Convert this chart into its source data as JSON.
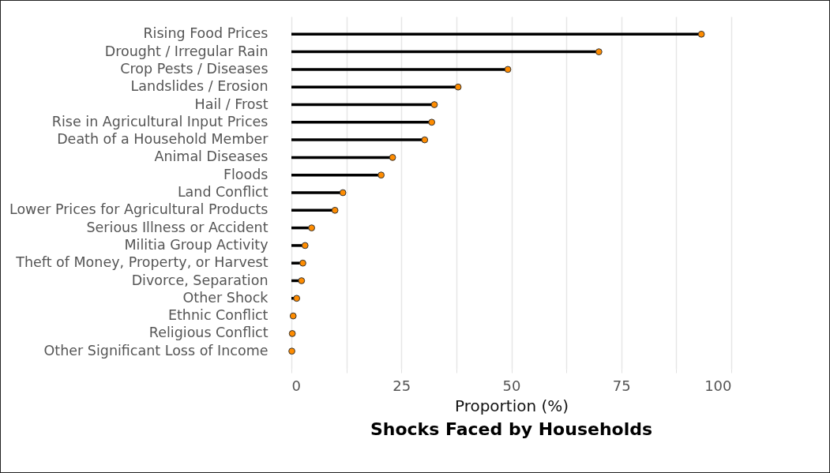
{
  "chart_data": {
    "type": "lollipop",
    "orientation": "horizontal",
    "title": "Shocks Faced by Households",
    "xlabel": "Proportion (%)",
    "categories": [
      "Rising Food Prices",
      "Drought / Irregular Rain",
      "Crop Pests / Diseases",
      "Landslides / Erosion",
      "Hail / Frost",
      "Rise in Agricultural Input Prices",
      "Death of a Household Member",
      "Animal Diseases",
      "Floods",
      "Land Conflict",
      "Lower Prices for Agricultural Products",
      "Serious Illness or Accident",
      "Militia Group Activity",
      "Theft of Money, Property, or Harvest",
      "Divorce, Separation",
      "Other Shock",
      "Ethnic Conflict",
      "Religious Conflict",
      "Other Significant Loss of Income"
    ],
    "values": [
      93.2,
      69.9,
      49.2,
      37.9,
      32.5,
      31.9,
      30.3,
      23.0,
      20.4,
      11.7,
      9.9,
      4.6,
      3.1,
      2.6,
      2.3,
      1.2,
      0.4,
      0.2,
      0.1
    ],
    "color": "#ff8c00",
    "xlim": [
      0,
      100
    ],
    "xticks": [
      0,
      {
        "value": 12.5,
        "label": null
      },
      25,
      {
        "value": 37.5,
        "label": null
      },
      50,
      {
        "value": 62.5,
        "label": null
      },
      75,
      {
        "value": 87.5,
        "label": null
      },
      100
    ],
    "grid": "x",
    "marker": "circle"
  }
}
